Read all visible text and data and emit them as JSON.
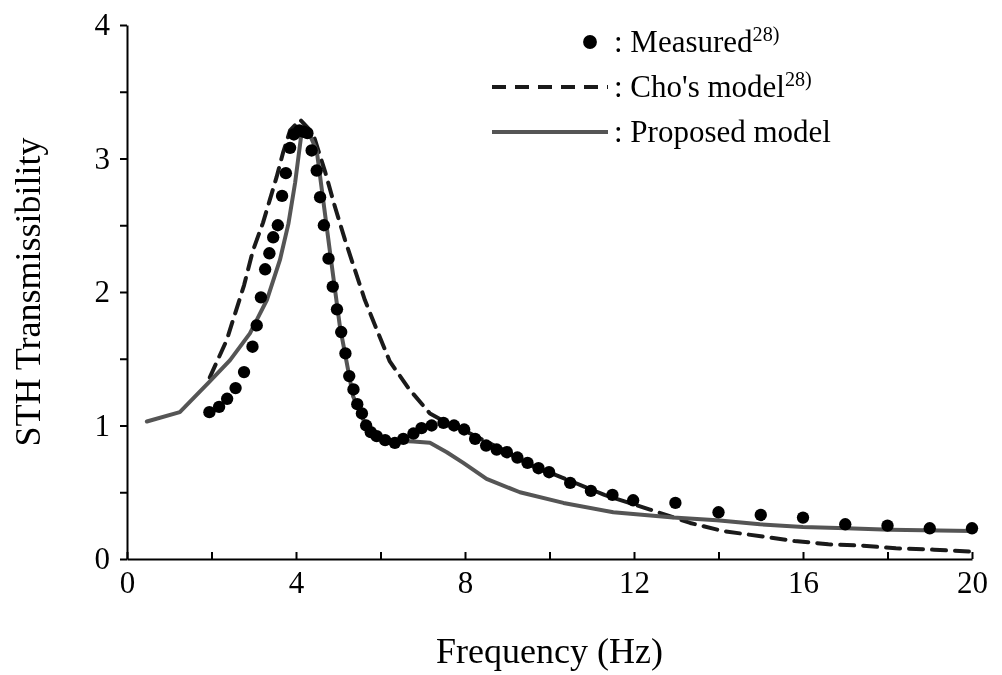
{
  "chart_data": {
    "type": "line",
    "xlabel": "Frequency (Hz)",
    "ylabel": "STH Transmissibility",
    "xlim": [
      0,
      20
    ],
    "ylim": [
      0,
      4
    ],
    "xticks": [
      0,
      {
        "value": 2,
        "label": null
      },
      4,
      {
        "value": 6,
        "label": null
      },
      8,
      {
        "value": 10,
        "label": null
      },
      12,
      {
        "value": 14,
        "label": null
      },
      16,
      {
        "value": 18,
        "label": null
      },
      20
    ],
    "yticks": [
      0,
      {
        "value": 0.5,
        "label": null
      },
      1,
      {
        "value": 1.5,
        "label": null
      },
      2,
      {
        "value": 2.5,
        "label": null
      },
      3,
      {
        "value": 3.5,
        "label": null
      },
      4
    ],
    "grid": false,
    "legend": "top right",
    "series": [
      {
        "name": ": Measured$^{28)}$",
        "type": "scatter",
        "marker": "circle",
        "color": "#000000",
        "x": [
          1.95,
          2.18,
          2.37,
          2.57,
          2.77,
          2.97,
          3.07,
          3.17,
          3.27,
          3.37,
          3.46,
          3.57,
          3.67,
          3.76,
          3.86,
          3.95,
          4.08,
          4.19,
          4.27,
          4.37,
          4.49,
          4.57,
          4.66,
          4.77,
          4.87,
          4.97,
          5.07,
          5.17,
          5.26,
          5.36,
          5.45,
          5.56,
          5.66,
          5.77,
          5.91,
          6.11,
          6.34,
          6.54,
          6.78,
          6.97,
          7.21,
          7.49,
          7.74,
          7.98,
          8.24,
          8.5,
          8.75,
          8.99,
          9.24,
          9.48,
          9.74,
          9.99,
          10.49,
          10.98,
          11.49,
          11.98,
          12.98,
          14.0,
          15.0,
          16.0,
          17.0,
          18.0,
          19.0,
          20.0
        ],
        "values": [
          1.1,
          1.14,
          1.2,
          1.28,
          1.4,
          1.59,
          1.75,
          1.96,
          2.17,
          2.29,
          2.41,
          2.5,
          2.72,
          2.89,
          3.08,
          3.18,
          3.21,
          3.2,
          3.19,
          3.06,
          2.91,
          2.71,
          2.5,
          2.25,
          2.04,
          1.87,
          1.7,
          1.54,
          1.37,
          1.27,
          1.16,
          1.09,
          1.0,
          0.95,
          0.92,
          0.89,
          0.87,
          0.9,
          0.94,
          0.98,
          1.0,
          1.02,
          1.0,
          0.97,
          0.9,
          0.85,
          0.82,
          0.8,
          0.76,
          0.72,
          0.68,
          0.65,
          0.57,
          0.51,
          0.48,
          0.44,
          0.42,
          0.35,
          0.33,
          0.31,
          0.26,
          0.25,
          0.23,
          0.23
        ]
      },
      {
        "name": ": Cho's model$^{28)}$",
        "line_style": "dashed",
        "color": "#1a1a1a",
        "x": [
          1.96,
          2.36,
          2.56,
          2.77,
          2.98,
          3.22,
          3.38,
          3.54,
          3.69,
          3.86,
          4.1,
          4.4,
          4.69,
          4.92,
          5.16,
          5.4,
          5.63,
          5.91,
          6.22,
          6.66,
          7.17,
          7.57,
          8.0,
          9.0,
          9.5,
          10.3,
          11.3,
          12.38,
          13.33,
          14.1,
          15.0,
          15.8,
          16.6,
          17.4,
          18.2,
          19.1,
          20.0
        ],
        "values": [
          1.36,
          1.64,
          1.84,
          2.05,
          2.31,
          2.52,
          2.69,
          2.86,
          3.04,
          3.21,
          3.29,
          3.19,
          2.9,
          2.64,
          2.39,
          2.16,
          1.94,
          1.72,
          1.48,
          1.28,
          1.09,
          1.02,
          0.96,
          0.8,
          0.71,
          0.61,
          0.48,
          0.37,
          0.27,
          0.21,
          0.17,
          0.135,
          0.11,
          0.1,
          0.08,
          0.07,
          0.055
        ]
      },
      {
        "name": ": Proposed model",
        "line_style": "solid",
        "color": "#555555",
        "x": [
          0.47,
          1.25,
          1.96,
          2.44,
          2.91,
          3.31,
          3.62,
          3.82,
          3.98,
          4.13,
          4.28,
          4.49,
          4.8,
          5.04,
          5.35,
          5.67,
          6.15,
          6.78,
          7.17,
          7.57,
          7.96,
          8.51,
          9.3,
          10.33,
          11.51,
          12.93,
          13.96,
          14.98,
          16.0,
          17.03,
          18.06,
          20.0
        ],
        "values": [
          1.03,
          1.1,
          1.33,
          1.49,
          1.69,
          1.94,
          2.24,
          2.51,
          2.82,
          3.19,
          3.21,
          3.06,
          2.31,
          1.74,
          1.22,
          0.99,
          0.89,
          0.88,
          0.87,
          0.8,
          0.72,
          0.6,
          0.5,
          0.42,
          0.35,
          0.31,
          0.29,
          0.26,
          0.24,
          0.23,
          0.22,
          0.21
        ]
      }
    ]
  }
}
